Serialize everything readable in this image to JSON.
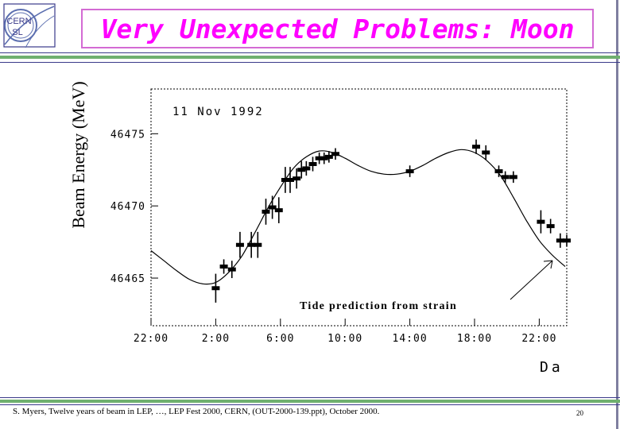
{
  "title": "Very Unexpected Problems: Moon",
  "logo": {
    "line1": "CERN",
    "line2": "SL"
  },
  "footer": "S. Myers, Twelve years of beam in LEP, …, LEP Fest 2000, CERN, (OUT-2000-139.ppt), October 2000.",
  "page_number": "20",
  "colors": {
    "title": "#ff00ff",
    "title_border": "#d36bd3",
    "accent_green": "#6fb06f",
    "rule_blue": "#3a3a8a"
  },
  "chart_data": {
    "type": "scatter",
    "title": "",
    "date_label": "11 Nov 1992",
    "ylabel": "Beam Energy (MeV)",
    "xlabel": "Da",
    "annotation": "Tide prediction from strain",
    "ylim": [
      46461.7,
      46478.1
    ],
    "xlim": [
      -2.0,
      23.7
    ],
    "grid": false,
    "x_tick_labels": [
      "22:00",
      "2:00",
      "6:00",
      "10:00",
      "14:00",
      "18:00",
      "22:00"
    ],
    "x_tick_values": [
      -2,
      2,
      6,
      10,
      14,
      18,
      22
    ],
    "y_tick_values": [
      46465,
      46470,
      46475
    ],
    "y_tick_labels": [
      "46465",
      "46470",
      "46475"
    ],
    "series": [
      {
        "type": "line",
        "x": [
          -2.0,
          -1.2,
          -0.4,
          0.4,
          1.2,
          2.0,
          2.8,
          3.6,
          4.4,
          5.2,
          6.0,
          6.8,
          7.6,
          8.4,
          9.2,
          10.0,
          10.8,
          11.6,
          12.4,
          13.2,
          14.0,
          14.8,
          15.6,
          16.4,
          17.2,
          18.0,
          18.8,
          19.6,
          20.4,
          21.2,
          22.0,
          22.8,
          23.6
        ],
        "y": [
          46466.9,
          46466.2,
          46465.5,
          46464.9,
          46464.6,
          46464.7,
          46465.4,
          46466.5,
          46468.1,
          46469.8,
          46471.3,
          46472.6,
          46473.4,
          46473.8,
          46473.7,
          46473.3,
          46472.8,
          46472.4,
          46472.2,
          46472.2,
          46472.4,
          46472.8,
          46473.3,
          46473.7,
          46473.9,
          46473.7,
          46473.1,
          46472.1,
          46470.6,
          46469.0,
          46467.6,
          46466.6,
          46465.8
        ]
      },
      {
        "type": "points",
        "x": [
          2.0,
          2.5,
          3.0,
          3.5,
          4.2,
          4.6,
          5.1,
          5.5,
          5.9,
          6.3,
          6.6,
          7.0,
          7.3,
          7.6,
          8.0,
          8.4,
          8.7,
          9.0,
          9.4,
          14.0,
          18.1,
          18.7,
          19.5,
          19.9,
          20.4,
          22.1,
          22.7,
          23.3,
          23.7
        ],
        "y": [
          46464.3,
          46465.8,
          46465.6,
          46467.3,
          46467.3,
          46467.3,
          46469.6,
          46469.9,
          46469.7,
          46471.8,
          46471.8,
          46471.9,
          46472.5,
          46472.6,
          46472.9,
          46473.3,
          46473.3,
          46473.4,
          46473.6,
          46472.4,
          46474.1,
          46473.7,
          46472.4,
          46472.0,
          46472.0,
          46468.9,
          46468.6,
          46467.6,
          46467.6
        ],
        "err": [
          1.0,
          0.5,
          0.6,
          0.9,
          0.9,
          0.9,
          0.9,
          0.8,
          0.9,
          0.9,
          0.9,
          0.7,
          0.6,
          0.5,
          0.5,
          0.4,
          0.4,
          0.4,
          0.4,
          0.4,
          0.5,
          0.5,
          0.4,
          0.4,
          0.4,
          0.8,
          0.5,
          0.5,
          0.4
        ]
      }
    ]
  }
}
